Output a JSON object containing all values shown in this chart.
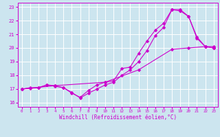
{
  "bg_color": "#cce5ef",
  "grid_color": "#aaccdd",
  "line_color": "#cc00cc",
  "xlabel": "Windchill (Refroidissement éolien,°C)",
  "xlim": [
    -0.5,
    23.5
  ],
  "ylim": [
    15.7,
    23.3
  ],
  "yticks": [
    16,
    17,
    18,
    19,
    20,
    21,
    22,
    23
  ],
  "xticks": [
    0,
    1,
    2,
    3,
    4,
    5,
    6,
    7,
    8,
    9,
    10,
    11,
    12,
    13,
    14,
    15,
    16,
    17,
    18,
    19,
    20,
    21,
    22,
    23
  ],
  "line1_x": [
    0,
    1,
    2,
    3,
    4,
    5,
    6,
    7,
    8,
    9,
    10,
    11,
    12,
    13,
    14,
    15,
    16,
    17,
    18,
    19,
    20,
    21,
    22,
    23
  ],
  "line1_y": [
    17.0,
    17.1,
    17.1,
    17.3,
    17.2,
    17.1,
    16.7,
    16.4,
    16.9,
    17.3,
    17.5,
    17.6,
    18.5,
    18.6,
    19.6,
    20.5,
    21.3,
    21.8,
    22.8,
    22.7,
    22.3,
    20.7,
    20.1,
    20.1
  ],
  "line2_x": [
    0,
    1,
    2,
    3,
    4,
    5,
    6,
    7,
    8,
    9,
    10,
    11,
    12,
    13,
    14,
    15,
    16,
    17,
    18,
    19,
    20,
    21,
    22,
    23
  ],
  "line2_y": [
    17.0,
    17.05,
    17.1,
    17.3,
    17.25,
    17.1,
    16.75,
    16.35,
    16.7,
    17.0,
    17.3,
    17.5,
    18.0,
    18.4,
    19.0,
    19.8,
    20.9,
    21.5,
    22.8,
    22.8,
    22.3,
    20.8,
    20.1,
    20.0
  ],
  "line3_x": [
    0,
    4,
    10,
    14,
    18,
    20,
    22,
    23
  ],
  "line3_y": [
    17.0,
    17.25,
    17.5,
    18.4,
    19.9,
    20.0,
    20.1,
    20.0
  ]
}
